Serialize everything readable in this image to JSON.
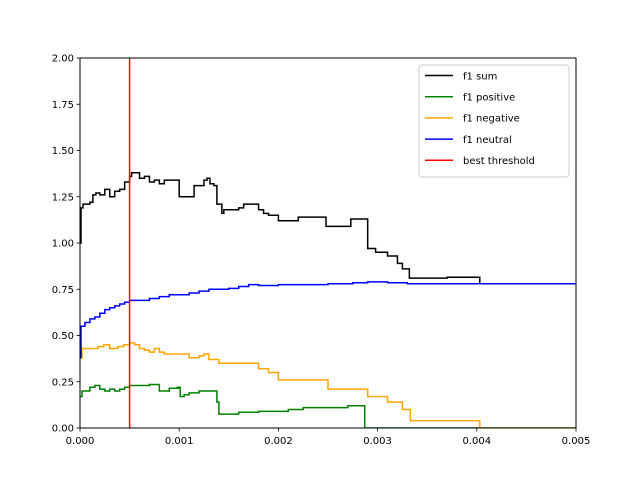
{
  "chart_data": {
    "type": "line",
    "title": "",
    "xlabel": "",
    "ylabel": "",
    "xlim": [
      0,
      0.005
    ],
    "ylim": [
      0,
      2.0
    ],
    "x_ticks": [
      0.0,
      0.001,
      0.002,
      0.003,
      0.004,
      0.005
    ],
    "x_tick_labels": [
      "0.000",
      "0.001",
      "0.002",
      "0.003",
      "0.004",
      "0.005"
    ],
    "y_ticks": [
      0.0,
      0.25,
      0.5,
      0.75,
      1.0,
      1.25,
      1.5,
      1.75,
      2.0
    ],
    "y_tick_labels": [
      "0.00",
      "0.25",
      "0.50",
      "0.75",
      "1.00",
      "1.25",
      "1.50",
      "1.75",
      "2.00"
    ],
    "grid": false,
    "legend_placement": "upper-right",
    "series": [
      {
        "name": "f1 sum",
        "color": "#000000",
        "step": true,
        "points": [
          [
            0.0,
            1.0
          ],
          [
            1e-05,
            1.19
          ],
          [
            3e-05,
            1.21
          ],
          [
            0.0001,
            1.22
          ],
          [
            0.00013,
            1.26
          ],
          [
            0.00016,
            1.27
          ],
          [
            0.0002,
            1.26
          ],
          [
            0.00025,
            1.29
          ],
          [
            0.0003,
            1.25
          ],
          [
            0.00035,
            1.28
          ],
          [
            0.0004,
            1.29
          ],
          [
            0.00045,
            1.33
          ],
          [
            0.0005,
            1.36
          ],
          [
            0.00052,
            1.38
          ],
          [
            0.0006,
            1.35
          ],
          [
            0.00065,
            1.36
          ],
          [
            0.0007,
            1.33
          ],
          [
            0.00075,
            1.34
          ],
          [
            0.0008,
            1.32
          ],
          [
            0.00085,
            1.34
          ],
          [
            0.001,
            1.25
          ],
          [
            0.00115,
            1.31
          ],
          [
            0.00125,
            1.34
          ],
          [
            0.00128,
            1.35
          ],
          [
            0.00131,
            1.32
          ],
          [
            0.00135,
            1.31
          ],
          [
            0.00138,
            1.21
          ],
          [
            0.00143,
            1.16
          ],
          [
            0.00145,
            1.18
          ],
          [
            0.0016,
            1.19
          ],
          [
            0.00165,
            1.21
          ],
          [
            0.0018,
            1.18
          ],
          [
            0.00185,
            1.16
          ],
          [
            0.0019,
            1.15
          ],
          [
            0.002,
            1.12
          ],
          [
            0.0022,
            1.14
          ],
          [
            0.00248,
            1.09
          ],
          [
            0.00273,
            1.13
          ],
          [
            0.00289,
            1.13
          ],
          [
            0.0029,
            0.97
          ],
          [
            0.00298,
            0.95
          ],
          [
            0.0031,
            0.93
          ],
          [
            0.0032,
            0.89
          ],
          [
            0.00325,
            0.86
          ],
          [
            0.00332,
            0.81
          ],
          [
            0.0037,
            0.815
          ],
          [
            0.00403,
            0.78
          ],
          [
            0.005,
            0.78
          ]
        ]
      },
      {
        "name": "f1 positive",
        "color": "#008000",
        "step": true,
        "points": [
          [
            0.0,
            0.17
          ],
          [
            2e-05,
            0.2
          ],
          [
            0.0001,
            0.22
          ],
          [
            0.00015,
            0.23
          ],
          [
            0.0002,
            0.21
          ],
          [
            0.00025,
            0.2
          ],
          [
            0.0003,
            0.21
          ],
          [
            0.00035,
            0.2
          ],
          [
            0.0004,
            0.21
          ],
          [
            0.00045,
            0.22
          ],
          [
            0.0005,
            0.23
          ],
          [
            0.0006,
            0.23
          ],
          [
            0.0007,
            0.235
          ],
          [
            0.0008,
            0.2
          ],
          [
            0.0009,
            0.215
          ],
          [
            0.001,
            0.215
          ],
          [
            0.00098,
            0.22
          ],
          [
            0.00101,
            0.17
          ],
          [
            0.00105,
            0.18
          ],
          [
            0.0011,
            0.19
          ],
          [
            0.0012,
            0.2
          ],
          [
            0.00138,
            0.14
          ],
          [
            0.0014,
            0.075
          ],
          [
            0.0016,
            0.085
          ],
          [
            0.0018,
            0.09
          ],
          [
            0.0021,
            0.1
          ],
          [
            0.00225,
            0.11
          ],
          [
            0.0027,
            0.12
          ],
          [
            0.00286,
            0.12
          ],
          [
            0.00287,
            0.0
          ],
          [
            0.005,
            0.0
          ]
        ]
      },
      {
        "name": "f1 negative",
        "color": "#FFA500",
        "step": true,
        "points": [
          [
            0.0,
            0.38
          ],
          [
            2e-05,
            0.43
          ],
          [
            0.0001,
            0.43
          ],
          [
            0.00018,
            0.44
          ],
          [
            0.00024,
            0.45
          ],
          [
            0.0003,
            0.43
          ],
          [
            0.00038,
            0.44
          ],
          [
            0.00044,
            0.45
          ],
          [
            0.0005,
            0.46
          ],
          [
            0.00055,
            0.45
          ],
          [
            0.0006,
            0.43
          ],
          [
            0.00065,
            0.42
          ],
          [
            0.0007,
            0.41
          ],
          [
            0.00075,
            0.43
          ],
          [
            0.0008,
            0.41
          ],
          [
            0.00085,
            0.4
          ],
          [
            0.0009,
            0.4
          ],
          [
            0.0011,
            0.38
          ],
          [
            0.0012,
            0.39
          ],
          [
            0.00125,
            0.4
          ],
          [
            0.0013,
            0.37
          ],
          [
            0.0014,
            0.35
          ],
          [
            0.0017,
            0.35
          ],
          [
            0.0018,
            0.32
          ],
          [
            0.0019,
            0.3
          ],
          [
            0.002,
            0.26
          ],
          [
            0.0025,
            0.21
          ],
          [
            0.00265,
            0.21
          ],
          [
            0.0029,
            0.17
          ],
          [
            0.0031,
            0.14
          ],
          [
            0.00325,
            0.1
          ],
          [
            0.00333,
            0.04
          ],
          [
            0.00403,
            0.0
          ],
          [
            0.005,
            0.0
          ]
        ]
      },
      {
        "name": "f1 neutral",
        "color": "#0000FF",
        "step": true,
        "points": [
          [
            0.0,
            0.38
          ],
          [
            1e-05,
            0.55
          ],
          [
            5e-05,
            0.57
          ],
          [
            0.0001,
            0.59
          ],
          [
            0.00015,
            0.6
          ],
          [
            0.0002,
            0.62
          ],
          [
            0.00025,
            0.64
          ],
          [
            0.0003,
            0.65
          ],
          [
            0.00035,
            0.66
          ],
          [
            0.0004,
            0.67
          ],
          [
            0.00045,
            0.68
          ],
          [
            0.0005,
            0.69
          ],
          [
            0.0006,
            0.69
          ],
          [
            0.0007,
            0.7
          ],
          [
            0.0008,
            0.71
          ],
          [
            0.0009,
            0.72
          ],
          [
            0.001,
            0.72
          ],
          [
            0.0011,
            0.73
          ],
          [
            0.0012,
            0.74
          ],
          [
            0.0013,
            0.75
          ],
          [
            0.0015,
            0.755
          ],
          [
            0.0016,
            0.765
          ],
          [
            0.0017,
            0.775
          ],
          [
            0.0018,
            0.77
          ],
          [
            0.002,
            0.775
          ],
          [
            0.0022,
            0.775
          ],
          [
            0.0025,
            0.78
          ],
          [
            0.00275,
            0.785
          ],
          [
            0.0029,
            0.79
          ],
          [
            0.0031,
            0.785
          ],
          [
            0.0033,
            0.78
          ],
          [
            0.0035,
            0.78
          ],
          [
            0.004,
            0.78
          ],
          [
            0.005,
            0.78
          ]
        ]
      }
    ],
    "vlines": [
      {
        "name": "best threshold",
        "color": "#FF0000",
        "x": 0.0005
      }
    ]
  }
}
